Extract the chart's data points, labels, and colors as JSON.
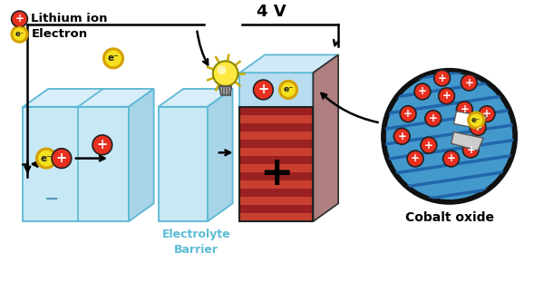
{
  "bg_color": "#ffffff",
  "voltage_label": "4 V",
  "cobalt_oxide_label": "Cobalt oxide",
  "electrolyte_barrier_label": "Electrolyte\nBarrier",
  "label_blue": "#5bbcd4",
  "arrow_color": "#111111",
  "anode_color": "#c8e8f5",
  "anode_edge": "#5bb8d4",
  "batt_red1": "#c94030",
  "batt_red2": "#9b2020",
  "batt_blue": "#b8ddf0",
  "cobalt_bg": "#4499cc",
  "cobalt_edge": "#222222",
  "ion_red": "#e83020",
  "electron_yellow": "#f5e020",
  "electron_ring": "#d4a000"
}
